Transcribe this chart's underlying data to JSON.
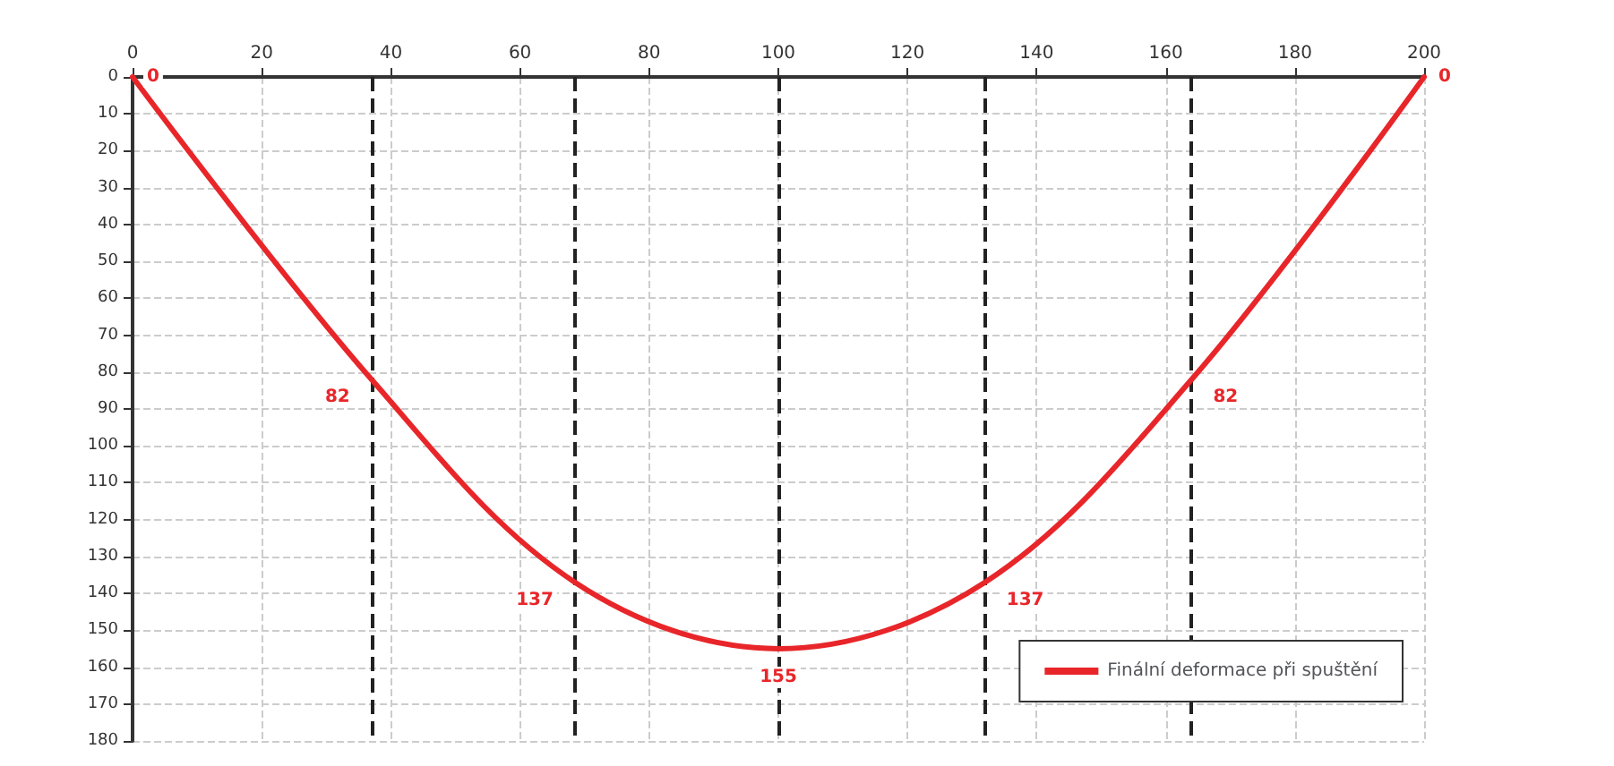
{
  "chart_data": {
    "type": "line",
    "x": [
      0,
      37,
      68.5,
      100,
      132,
      164,
      200
    ],
    "series": [
      {
        "name": "Finální deformace při spuštění",
        "color": "#e8262a",
        "values": [
          0,
          82,
          137,
          155,
          137,
          82,
          0
        ]
      }
    ],
    "xlim": [
      0,
      200
    ],
    "xticks": [
      0,
      20,
      40,
      60,
      80,
      100,
      120,
      140,
      160,
      180,
      200
    ],
    "ylim": [
      180,
      0
    ],
    "yticks": [
      0,
      10,
      20,
      30,
      40,
      50,
      60,
      70,
      80,
      90,
      100,
      110,
      120,
      130,
      140,
      150,
      160,
      170,
      180
    ],
    "ref_lines": [
      {
        "axis": "x",
        "value": 37,
        "color": "#222222",
        "line_style": "dashed"
      },
      {
        "axis": "x",
        "value": 68.5,
        "color": "#222222",
        "line_style": "dashed"
      },
      {
        "axis": "x",
        "value": 100,
        "color": "#222222",
        "line_style": "dashed"
      },
      {
        "axis": "x",
        "value": 132,
        "color": "#222222",
        "line_style": "dashed"
      },
      {
        "axis": "x",
        "value": 164,
        "color": "#222222",
        "line_style": "dashed"
      }
    ],
    "data_labels": true,
    "grid": true,
    "legend": "bottom right",
    "marker": "none",
    "line_style": "solid"
  }
}
